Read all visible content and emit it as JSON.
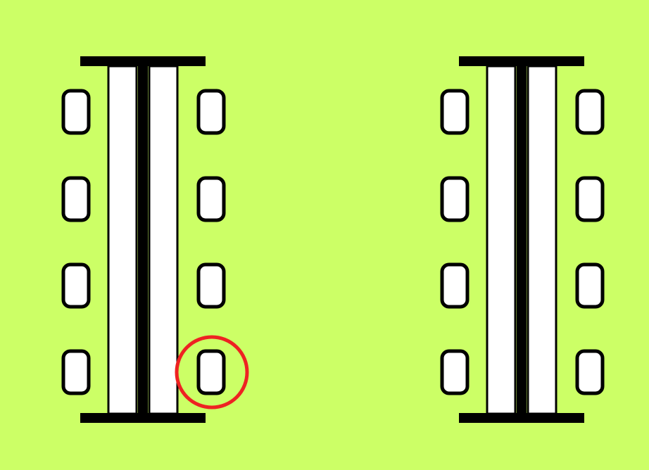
{
  "diagram": {
    "background_color": "#ccff66",
    "line_color": "#000000",
    "fill_color": "#ffffff",
    "highlight_color": "#ee2222",
    "tables": [
      {
        "id": "table-left",
        "seats_per_side": 4,
        "sides": [
          "left",
          "right"
        ]
      },
      {
        "id": "table-right",
        "seats_per_side": 4,
        "sides": [
          "left",
          "right"
        ]
      }
    ],
    "highlighted_seat": {
      "table": 1,
      "side": "right",
      "seat": 4
    }
  }
}
